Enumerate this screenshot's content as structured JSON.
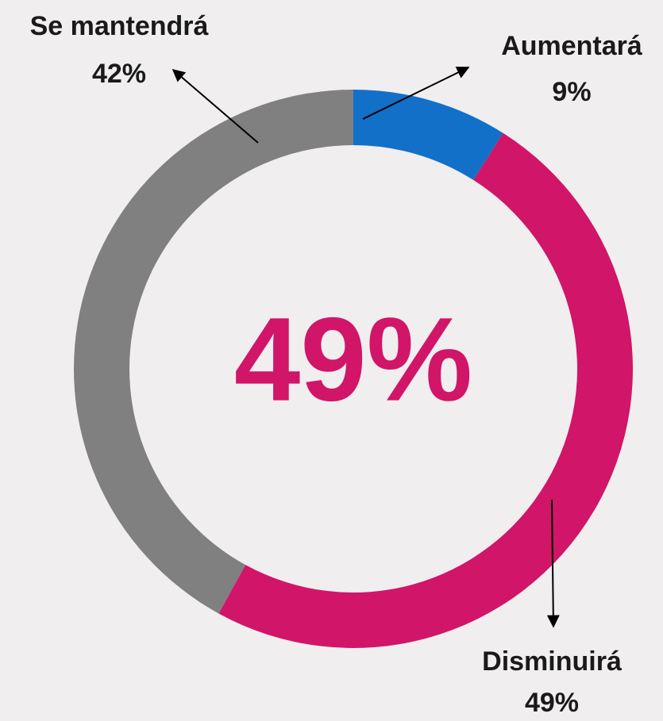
{
  "chart_data": {
    "type": "pie",
    "donut": true,
    "categories": [
      "Aumentará",
      "Disminuirá",
      "Se mantendrá"
    ],
    "values": [
      9,
      49,
      42
    ],
    "value_labels": [
      "9%",
      "49%",
      "42%"
    ],
    "colors": [
      "#1270c8",
      "#d11568",
      "#808080"
    ],
    "center_label": "49%",
    "center_color": "#d11568"
  }
}
